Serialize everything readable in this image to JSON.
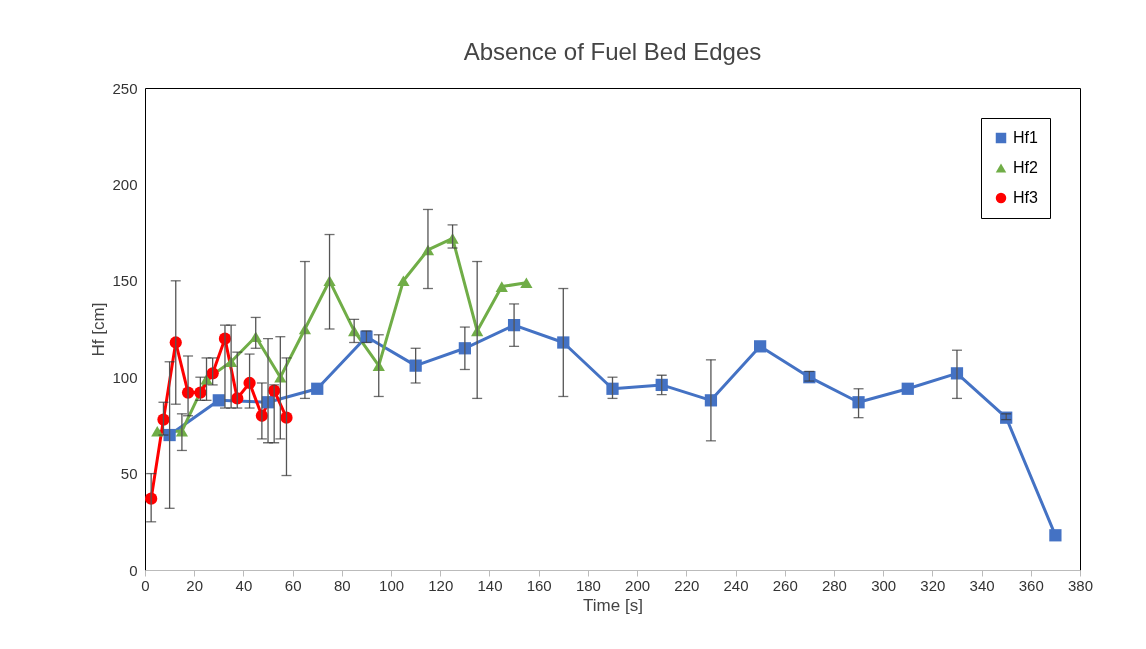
{
  "chart_data": {
    "type": "line",
    "title": "Absence of Fuel Bed Edges",
    "xlabel": "Time [s]",
    "ylabel": "Hf [cm]",
    "xlim": [
      0,
      380
    ],
    "xticks": [
      0,
      20,
      40,
      60,
      80,
      100,
      120,
      140,
      160,
      180,
      200,
      220,
      240,
      260,
      280,
      300,
      320,
      340,
      360,
      380
    ],
    "ylim": [
      0,
      250
    ],
    "yticks": [
      0,
      50,
      100,
      150,
      200,
      250
    ],
    "grid": false,
    "legend": "top right",
    "series": [
      {
        "name": "Hf1",
        "color": "#4472c4",
        "marker": "square",
        "x": [
          10,
          30,
          50,
          70,
          90,
          110,
          130,
          150,
          170,
          190,
          210,
          230,
          250,
          270,
          290,
          310,
          330,
          350,
          370
        ],
        "values": [
          70,
          88,
          87,
          94,
          121,
          106,
          115,
          127,
          118,
          94,
          96,
          88,
          116,
          100,
          87,
          94,
          102,
          79,
          18
        ],
        "errors": [
          [
            32,
            108
          ],
          null,
          [
            66,
            120
          ],
          null,
          [
            118,
            124
          ],
          [
            97,
            115
          ],
          [
            104,
            126
          ],
          [
            116,
            138
          ],
          [
            90,
            146
          ],
          [
            89,
            100
          ],
          [
            91,
            101
          ],
          [
            67,
            109
          ],
          null,
          [
            98,
            103
          ],
          [
            79,
            94
          ],
          null,
          [
            89,
            114
          ],
          [
            78,
            81
          ],
          null
        ]
      },
      {
        "name": "Hf2",
        "color": "#70ad47",
        "marker": "triangle",
        "x": [
          5,
          15,
          25,
          35,
          45,
          55,
          65,
          75,
          85,
          95,
          105,
          115,
          125,
          135,
          145,
          155
        ],
        "values": [
          72,
          72,
          99,
          108,
          121,
          100,
          125,
          150,
          124,
          106,
          150,
          166,
          172,
          124,
          147,
          149
        ],
        "errors": [
          null,
          [
            62,
            81
          ],
          [
            88,
            110
          ],
          [
            84,
            127
          ],
          [
            115,
            131
          ],
          [
            68,
            121
          ],
          [
            89,
            160
          ],
          [
            125,
            174
          ],
          [
            118,
            130
          ],
          [
            90,
            122
          ],
          null,
          [
            146,
            187
          ],
          [
            167,
            179
          ],
          [
            89,
            160
          ],
          null,
          null
        ]
      },
      {
        "name": "Hf3",
        "color": "#ff0000",
        "marker": "circle",
        "x": [
          2.5,
          7.5,
          12.5,
          17.5,
          22.5,
          27.5,
          32.5,
          37.5,
          42.5,
          47.5,
          52.5,
          57.5
        ],
        "values": [
          37,
          78,
          118,
          92,
          92,
          102,
          120,
          89,
          97,
          80,
          93,
          79
        ],
        "errors": [
          [
            25,
            50
          ],
          [
            70,
            87
          ],
          [
            86,
            150
          ],
          [
            80,
            111
          ],
          [
            88,
            100
          ],
          [
            96,
            110
          ],
          [
            84,
            127
          ],
          [
            84,
            113
          ],
          [
            84,
            112
          ],
          [
            68,
            97
          ],
          [
            66,
            96
          ],
          [
            49,
            110
          ]
        ]
      }
    ]
  }
}
